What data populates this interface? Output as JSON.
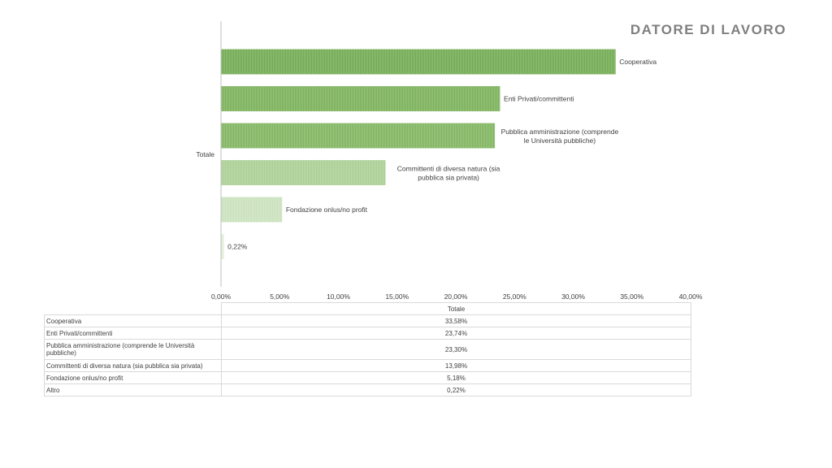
{
  "title": "DATORE DI LAVORO",
  "chart_data": {
    "type": "bar",
    "orientation": "horizontal",
    "group_label": "Totale",
    "categories": [
      "Cooperativa",
      "Enti Privati/committenti",
      "Pubblica amministrazione (comprende le Università pubbliche)",
      "Committenti di diversa natura (sia pubblica sia privata)",
      "Fondazione onlus/no profit",
      "Altro"
    ],
    "bar_labels": [
      "Cooperativa",
      "Enti Privati/committenti",
      "Pubblica amministrazione (comprende le Università pubbliche)",
      "Committenti di diversa natura (sia pubblica sia privata)",
      "Fondazione onlus/no profit",
      "0,22%"
    ],
    "values": [
      33.58,
      23.74,
      23.3,
      13.98,
      5.18,
      0.22
    ],
    "xlim": [
      0,
      40
    ],
    "xticks": [
      "0,00%",
      "5,00%",
      "10,00%",
      "15,00%",
      "20,00%",
      "25,00%",
      "30,00%",
      "35,00%",
      "40,00%"
    ],
    "bar_colors": [
      "#70a94f",
      "#79b057",
      "#7fb45e",
      "#a9ce93",
      "#c9e1bb",
      "#dfeed7"
    ],
    "grid": false,
    "legend": "none",
    "table": {
      "header": "Totale",
      "rows": [
        {
          "label": "Cooperativa",
          "value": "33,58%"
        },
        {
          "label": "Enti Privati/committenti",
          "value": "23,74%"
        },
        {
          "label": "Pubblica amministrazione (comprende le Università pubbliche)",
          "value": "23,30%"
        },
        {
          "label": "Committenti di diversa natura (sia pubblica sia privata)",
          "value": "13,98%"
        },
        {
          "label": "Fondazione onlus/no profit",
          "value": "5,18%"
        },
        {
          "label": "Altro",
          "value": "0,22%"
        }
      ]
    }
  }
}
